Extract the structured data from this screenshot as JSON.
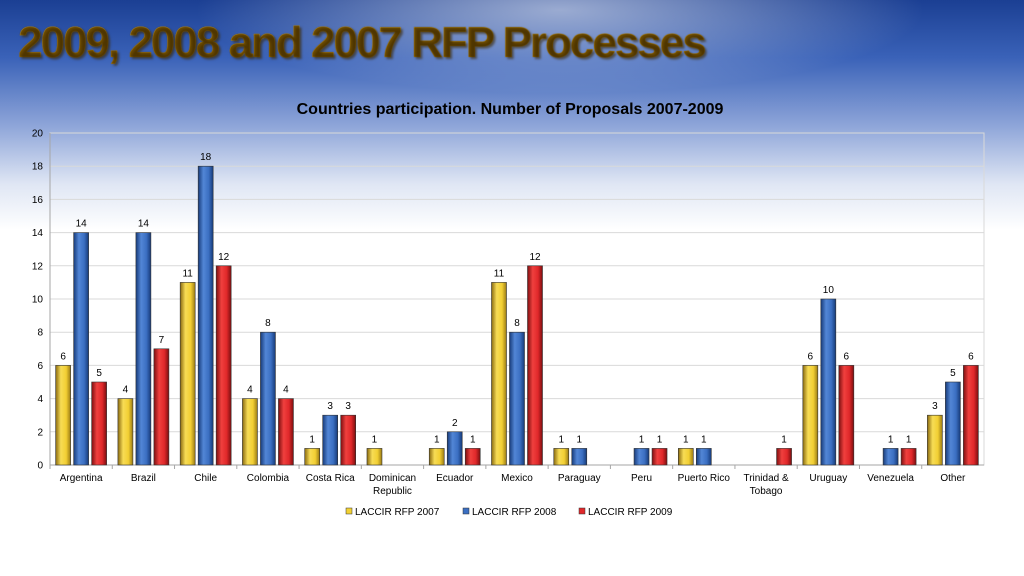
{
  "slide": {
    "title": "2009, 2008 and 2007 RFP Processes"
  },
  "colors": {
    "LACCIR RFP 2007": "#f2d133",
    "LACCIR RFP 2008": "#3b6fc2",
    "LACCIR RFP 2009": "#e0282a"
  },
  "chart_data": {
    "type": "bar",
    "title": "Countries participation. Number of Proposals 2007-2009",
    "xlabel": "",
    "ylabel": "",
    "ylim": [
      0,
      20
    ],
    "yticks": [
      0,
      2,
      4,
      6,
      8,
      10,
      12,
      14,
      16,
      18,
      20
    ],
    "grid": true,
    "legend": "bottom",
    "categories": [
      "Argentina",
      "Brazil",
      "Chile",
      "Colombia",
      "Costa Rica",
      "Dominican Republic",
      "Ecuador",
      "Mexico",
      "Paraguay",
      "Peru",
      "Puerto Rico",
      "Trinidad & Tobago",
      "Uruguay",
      "Venezuela",
      "Other"
    ],
    "series": [
      {
        "name": "LACCIR RFP 2007",
        "values": [
          6,
          4,
          11,
          4,
          1,
          1,
          1,
          11,
          1,
          null,
          1,
          null,
          6,
          null,
          3
        ]
      },
      {
        "name": "LACCIR RFP 2008",
        "values": [
          14,
          14,
          18,
          8,
          3,
          null,
          2,
          8,
          1,
          1,
          1,
          null,
          10,
          1,
          5
        ]
      },
      {
        "name": "LACCIR RFP 2009",
        "values": [
          5,
          7,
          12,
          4,
          3,
          null,
          1,
          12,
          null,
          1,
          null,
          1,
          6,
          1,
          6
        ]
      }
    ]
  }
}
